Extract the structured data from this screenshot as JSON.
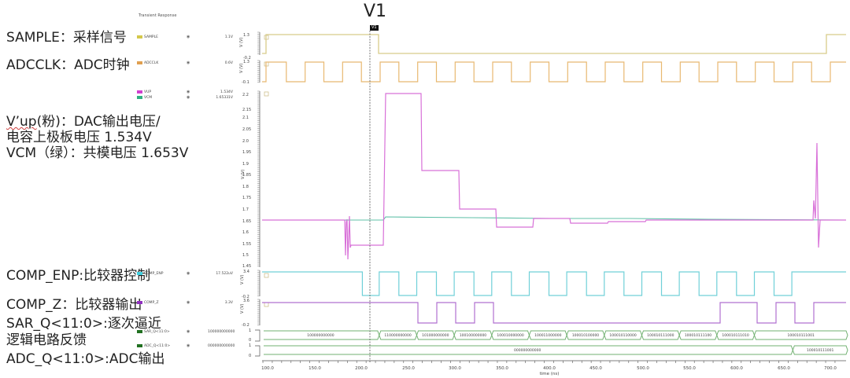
{
  "annotations": {
    "sample": "SAMPLE：采样信号",
    "adcclk": "ADCCLK：ADC时钟",
    "vup_prefix": "V’up",
    "vup_rest": "(粉)：DAC输出电压/",
    "vup_line2": "电容上极板电压 1.534V",
    "vcm_line": "VCM（绿）：共模电压 1.653V",
    "comp_enp": "COMP_ENP:比较器控制",
    "comp_z": "COMP_Z：比较器输出",
    "sar_q_line1": "SAR_Q<11:0>:逐次逼近",
    "sar_q_line2": "逻辑电路反馈",
    "adc_q": "ADC_Q<11:0>:ADC输出"
  },
  "plot": {
    "title": "Transient Response",
    "cursor_big_label": "V1",
    "cursor_tag": "V1",
    "x_axis_label": "time (ns)",
    "x_ticks": [
      "100.0",
      "150.0",
      "200.0",
      "250.0",
      "300.0",
      "350.0",
      "400.0",
      "450.0",
      "500.0",
      "550.0",
      "600.0",
      "650.0",
      "700.0"
    ],
    "y_axis_label": "V (V)"
  },
  "legend": [
    {
      "name": "SAMPLE",
      "value": "1.1V",
      "color": "#d4c84a"
    },
    {
      "name": "ADCCLK",
      "value": "0.6V",
      "color": "#e0a050"
    },
    {
      "name": "VUP",
      "value": "1.534V",
      "color": "#d040d0"
    },
    {
      "name": "VCM",
      "value": "1.65331V",
      "color": "#30b080"
    },
    {
      "name": "COMP_ENP",
      "value": "17.522uV",
      "color": "#40d0e0"
    },
    {
      "name": "COMP_Z",
      "value": "3.3V",
      "color": "#9030c0"
    },
    {
      "name": "SAR_Q<11:0>",
      "value": "100000000000",
      "color": "#207020"
    },
    {
      "name": "ADC_Q<11:0>",
      "value": "000000000000",
      "color": "#207020"
    }
  ],
  "panels": {
    "sample": {
      "ymax": "1.3",
      "ymin": "-0.2"
    },
    "adcclk": {
      "ymax": "1.3",
      "ymin": "-0.1"
    },
    "vup": {
      "ticks": [
        "2.2",
        "2.15",
        "2.1",
        "2.05",
        "2.0",
        "1.95",
        "1.9",
        "1.85",
        "1.8",
        "1.75",
        "1.7",
        "1.65",
        "1.6",
        "1.55",
        "1.5",
        "1.45"
      ]
    },
    "comp_enp": {
      "ymax": "3.4",
      "ymin": "-0.2"
    },
    "comp_z": {
      "ymax": "3.6",
      "ymin": "-0.2"
    },
    "sar_q": {
      "ymax": "1",
      "ymin": "0"
    },
    "adc_q": {
      "ymax": "1",
      "ymin": "0"
    }
  },
  "bus_values": {
    "sar_q": [
      "100000000000",
      "110000000000",
      "101000000000",
      "100100000000",
      "100010000000",
      "100011000000",
      "100010100000",
      "100010110000",
      "100010111000",
      "100010111100",
      "100010111010",
      "100010111001"
    ],
    "adc_q": [
      "000000000000",
      "100010111001"
    ]
  },
  "chart_data": {
    "type": "line",
    "title": "Transient Response",
    "xlabel": "time (ns)",
    "xlim": [
      100,
      700
    ],
    "cursor": {
      "label": "V1",
      "x": 209
    },
    "series": [
      {
        "name": "SAMPLE",
        "unit": "V",
        "points": [
          [
            100,
            -0.2
          ],
          [
            100.5,
            1.3
          ],
          [
            218,
            1.3
          ],
          [
            218,
            -0.2
          ],
          [
            688,
            -0.2
          ],
          [
            688,
            1.3
          ],
          [
            700,
            1.3
          ]
        ]
      },
      {
        "name": "ADCCLK",
        "unit": "V",
        "note": "square wave -0.1..1.3, period ~40ns, high first half",
        "period_ns": 40
      },
      {
        "name": "VUP",
        "unit": "V",
        "points": [
          [
            100,
            1.65
          ],
          [
            185,
            1.65
          ],
          [
            186,
            1.47
          ],
          [
            188,
            1.66
          ],
          [
            189,
            1.45
          ],
          [
            190,
            1.53
          ],
          [
            222,
            1.53
          ],
          [
            225,
            2.21
          ],
          [
            263,
            2.21
          ],
          [
            264,
            1.865
          ],
          [
            301,
            1.865
          ],
          [
            302,
            1.7
          ],
          [
            340,
            1.7
          ],
          [
            341,
            1.62
          ],
          [
            380,
            1.62
          ],
          [
            381,
            1.66
          ],
          [
            420,
            1.66
          ],
          [
            421,
            1.64
          ],
          [
            460,
            1.64
          ],
          [
            461,
            1.645
          ],
          [
            500,
            1.645
          ],
          [
            501,
            1.65
          ],
          [
            685,
            1.65
          ],
          [
            686,
            1.72
          ],
          [
            687,
            1.99
          ],
          [
            688,
            1.49
          ],
          [
            690,
            1.65
          ],
          [
            700,
            1.65
          ]
        ]
      },
      {
        "name": "VCM",
        "unit": "V",
        "points": [
          [
            100,
            1.65
          ],
          [
            222,
            1.65
          ],
          [
            225,
            1.66
          ],
          [
            300,
            1.658
          ],
          [
            400,
            1.655
          ],
          [
            700,
            1.653
          ]
        ]
      },
      {
        "name": "COMP_ENP",
        "unit": "V",
        "note": "high 3.4 until ~201ns, then pulses; low -0.2"
      },
      {
        "name": "COMP_Z",
        "unit": "V",
        "note": "high 3.6, low pulses at comparator decisions"
      },
      {
        "name": "SAR_Q<11:0>",
        "type": "bus",
        "values": [
          "100000000000",
          "110000000000",
          "101000000000",
          "100100000000",
          "100010000000",
          "100011000000",
          "100010100000",
          "100010110000",
          "100010111000",
          "100010111100",
          "100010111010",
          "100010111001"
        ]
      },
      {
        "name": "ADC_Q<11:0>",
        "type": "bus",
        "values": [
          "000000000000",
          "100010111001"
        ]
      }
    ]
  }
}
